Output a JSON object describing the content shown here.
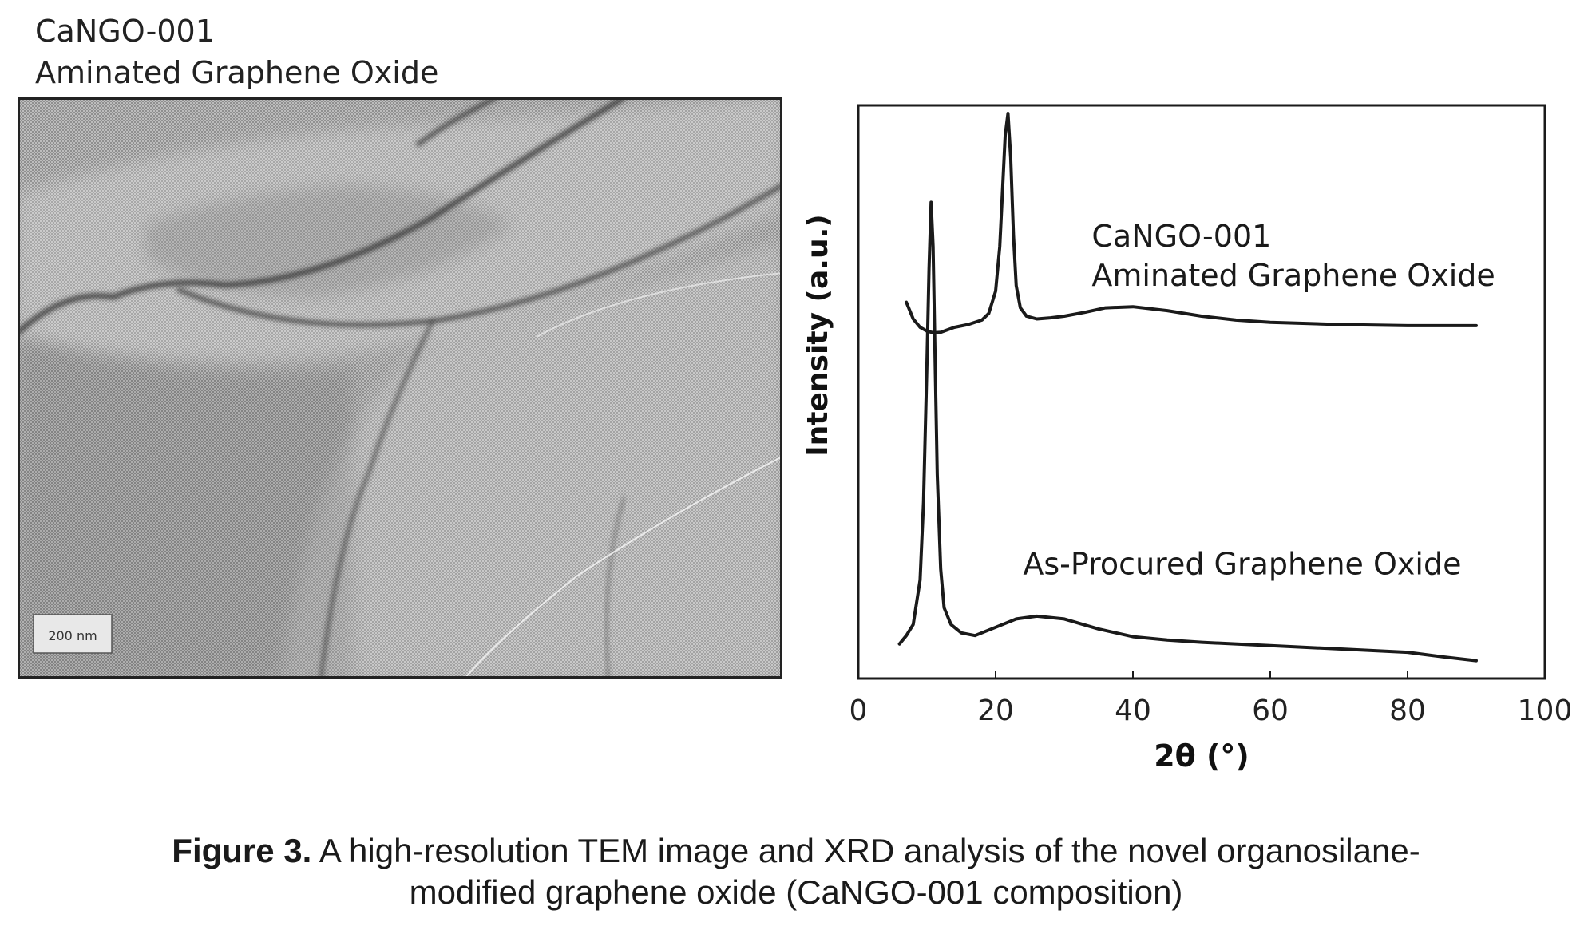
{
  "tem": {
    "title_line1": "CaNGO-001",
    "title_line2": "Aminated Graphene Oxide",
    "scale_bar": "200 nm"
  },
  "chart_data": {
    "type": "line",
    "xlabel": "2θ (°)",
    "ylabel": "Intensity (a.u.)",
    "xlim": [
      0,
      100
    ],
    "xticks": [
      0,
      20,
      40,
      60,
      80,
      100
    ],
    "ylim": [
      0,
      100
    ],
    "y_ticks_shown": false,
    "grid": false,
    "annotations": [
      {
        "text": "CaNGO-001",
        "x": 34,
        "y": 76
      },
      {
        "text": "Aminated Graphene Oxide",
        "x": 34,
        "y": 69
      },
      {
        "text": "As-Procured Graphene Oxide",
        "x": 24,
        "y": 17
      }
    ],
    "series": [
      {
        "label": "CaNGO-001 Aminated Graphene Oxide",
        "x": [
          7,
          8,
          9,
          10,
          11,
          12,
          14,
          16,
          18,
          19,
          20,
          20.6,
          21,
          21.4,
          21.8,
          22.2,
          22.6,
          23,
          23.6,
          24.5,
          26,
          28,
          30,
          33,
          36,
          40,
          45,
          50,
          55,
          60,
          70,
          80,
          90
        ],
        "y": [
          66,
          63,
          61.5,
          60.8,
          60.5,
          60.6,
          61.5,
          62,
          62.8,
          64,
          68,
          76,
          86,
          96,
          100,
          92,
          78,
          69,
          65,
          63.5,
          63,
          63.2,
          63.5,
          64.2,
          65,
          65.2,
          64.5,
          63.5,
          62.8,
          62.4,
          62,
          61.8,
          61.8
        ]
      },
      {
        "label": "As-Procured Graphene Oxide",
        "x": [
          6,
          7,
          8,
          9,
          9.5,
          10,
          10.3,
          10.6,
          10.9,
          11.2,
          11.5,
          12,
          12.5,
          13.5,
          15,
          17,
          20,
          23,
          26,
          30,
          35,
          40,
          45,
          50,
          60,
          70,
          80,
          85,
          90
        ],
        "y": [
          4.5,
          6,
          8,
          16,
          30,
          55,
          72,
          84,
          76,
          55,
          35,
          18,
          11,
          8,
          6.5,
          6,
          7.5,
          9,
          9.5,
          9,
          7.2,
          5.8,
          5.2,
          4.8,
          4.2,
          3.6,
          3,
          2.2,
          1.5
        ]
      }
    ]
  },
  "caption": {
    "label": "Figure 3.",
    "line1_text": " A high-resolution TEM image and XRD analysis of the novel organosilane-",
    "line2_text": "modified graphene oxide (CaNGO-001 composition)"
  }
}
